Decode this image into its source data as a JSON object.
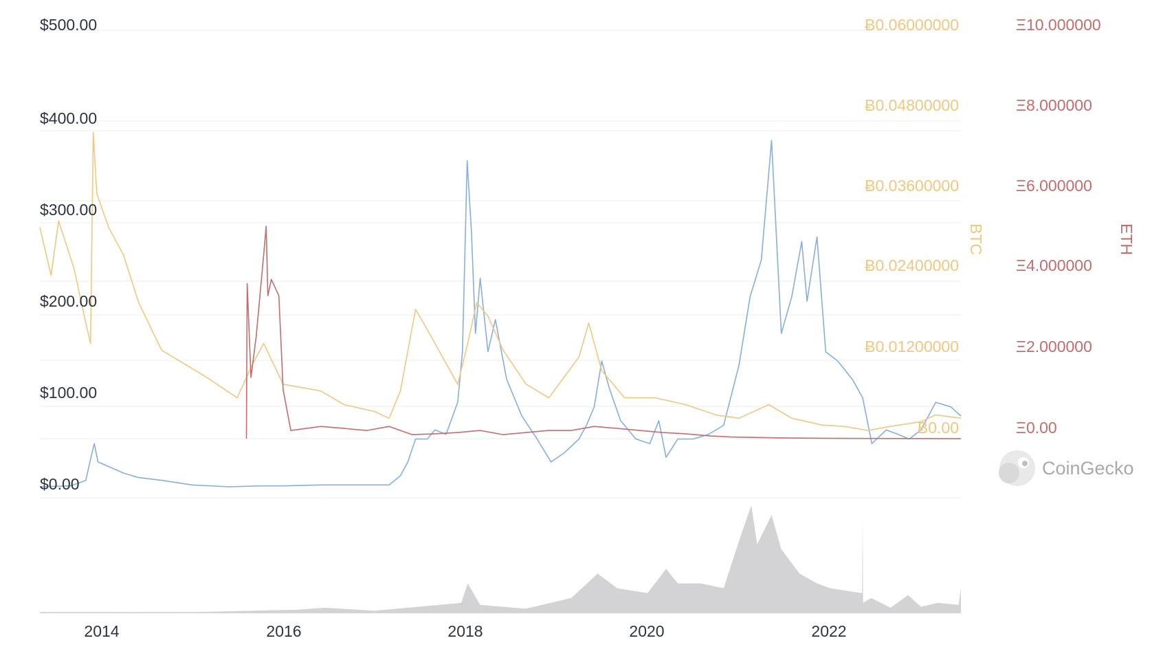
{
  "chart_data": {
    "type": "line",
    "x_axis": {
      "ticks": [
        "2014",
        "2016",
        "2018",
        "2020",
        "2022"
      ],
      "range": [
        "2013-05-01",
        "2023-06-10"
      ]
    },
    "y_axes": {
      "usd": {
        "ticks": [
          "$0.00",
          "$100.00",
          "$200.00",
          "$300.00",
          "$400.00",
          "$500.00"
        ],
        "range": [
          0,
          500
        ]
      },
      "btc": {
        "label": "BTC",
        "ticks": [
          "Ƀ0.00",
          "Ƀ0.01200000",
          "Ƀ0.02400000",
          "Ƀ0.03600000",
          "Ƀ0.04800000",
          "Ƀ0.06000000"
        ],
        "range": [
          0,
          0.06
        ]
      },
      "eth": {
        "label": "ETH",
        "ticks": [
          "Ξ0.00",
          "Ξ2.000000",
          "Ξ4.000000",
          "Ξ6.000000",
          "Ξ8.000000",
          "Ξ10.000000"
        ],
        "range": [
          0,
          10
        ]
      }
    },
    "series": [
      {
        "axis": "usd",
        "color": "#86aee0",
        "points": [
          [
            "2013-05-01",
            3
          ],
          [
            "2013-09-01",
            4
          ],
          [
            "2013-11-01",
            10
          ],
          [
            "2013-11-20",
            33
          ],
          [
            "2013-12-05",
            50
          ],
          [
            "2013-12-20",
            30
          ],
          [
            "2014-02-01",
            25
          ],
          [
            "2014-04-01",
            18
          ],
          [
            "2014-06-01",
            13
          ],
          [
            "2014-09-01",
            10
          ],
          [
            "2015-01-01",
            5
          ],
          [
            "2015-06-01",
            3
          ],
          [
            "2015-10-01",
            4
          ],
          [
            "2016-01-01",
            4
          ],
          [
            "2016-06-01",
            5
          ],
          [
            "2016-12-01",
            5
          ],
          [
            "2017-03-01",
            5
          ],
          [
            "2017-04-15",
            15
          ],
          [
            "2017-05-15",
            30
          ],
          [
            "2017-06-15",
            55
          ],
          [
            "2017-08-01",
            55
          ],
          [
            "2017-09-01",
            65
          ],
          [
            "2017-10-15",
            60
          ],
          [
            "2017-12-01",
            95
          ],
          [
            "2017-12-20",
            150
          ],
          [
            "2018-01-08",
            358
          ],
          [
            "2018-01-25",
            280
          ],
          [
            "2018-02-10",
            170
          ],
          [
            "2018-03-01",
            230
          ],
          [
            "2018-04-01",
            150
          ],
          [
            "2018-05-01",
            185
          ],
          [
            "2018-06-15",
            120
          ],
          [
            "2018-08-15",
            80
          ],
          [
            "2018-10-15",
            55
          ],
          [
            "2018-12-10",
            30
          ],
          [
            "2019-02-01",
            40
          ],
          [
            "2019-04-01",
            55
          ],
          [
            "2019-05-01",
            70
          ],
          [
            "2019-06-01",
            90
          ],
          [
            "2019-07-01",
            140
          ],
          [
            "2019-08-01",
            110
          ],
          [
            "2019-09-15",
            75
          ],
          [
            "2019-11-15",
            55
          ],
          [
            "2020-01-10",
            50
          ],
          [
            "2020-02-15",
            75
          ],
          [
            "2020-03-15",
            35
          ],
          [
            "2020-05-01",
            55
          ],
          [
            "2020-07-01",
            55
          ],
          [
            "2020-09-01",
            60
          ],
          [
            "2020-11-01",
            70
          ],
          [
            "2021-01-01",
            135
          ],
          [
            "2021-02-15",
            210
          ],
          [
            "2021-04-01",
            250
          ],
          [
            "2021-05-12",
            380
          ],
          [
            "2021-06-20",
            170
          ],
          [
            "2021-08-01",
            210
          ],
          [
            "2021-09-10",
            270
          ],
          [
            "2021-10-01",
            205
          ],
          [
            "2021-11-10",
            275
          ],
          [
            "2021-12-15",
            150
          ],
          [
            "2022-02-01",
            140
          ],
          [
            "2022-04-01",
            120
          ],
          [
            "2022-05-12",
            100
          ],
          [
            "2022-06-18",
            50
          ],
          [
            "2022-08-15",
            65
          ],
          [
            "2022-10-01",
            60
          ],
          [
            "2022-11-15",
            55
          ],
          [
            "2023-01-01",
            65
          ],
          [
            "2023-03-01",
            95
          ],
          [
            "2023-05-01",
            90
          ],
          [
            "2023-06-10",
            80
          ]
        ]
      },
      {
        "axis": "btc",
        "color": "#f2c77e",
        "points": [
          [
            "2013-05-01",
            0.031
          ],
          [
            "2013-06-15",
            0.024
          ],
          [
            "2013-07-15",
            0.032
          ],
          [
            "2013-09-15",
            0.025
          ],
          [
            "2013-11-01",
            0.017
          ],
          [
            "2013-11-20",
            0.014
          ],
          [
            "2013-12-01",
            0.045
          ],
          [
            "2013-12-15",
            0.036
          ],
          [
            "2014-02-01",
            0.031
          ],
          [
            "2014-04-01",
            0.027
          ],
          [
            "2014-06-01",
            0.02
          ],
          [
            "2014-09-01",
            0.013
          ],
          [
            "2014-12-01",
            0.011
          ],
          [
            "2015-03-01",
            0.009
          ],
          [
            "2015-07-01",
            0.006
          ],
          [
            "2015-09-01",
            0.011
          ],
          [
            "2015-10-15",
            0.014
          ],
          [
            "2016-01-01",
            0.008
          ],
          [
            "2016-06-01",
            0.007
          ],
          [
            "2016-09-01",
            0.005
          ],
          [
            "2017-01-01",
            0.004
          ],
          [
            "2017-03-01",
            0.003
          ],
          [
            "2017-04-15",
            0.007
          ],
          [
            "2017-06-15",
            0.019
          ],
          [
            "2017-08-01",
            0.016
          ],
          [
            "2017-10-01",
            0.012
          ],
          [
            "2017-12-01",
            0.008
          ],
          [
            "2018-01-10",
            0.014
          ],
          [
            "2018-02-15",
            0.02
          ],
          [
            "2018-04-01",
            0.018
          ],
          [
            "2018-06-01",
            0.013
          ],
          [
            "2018-09-01",
            0.008
          ],
          [
            "2018-12-01",
            0.006
          ],
          [
            "2019-04-01",
            0.012
          ],
          [
            "2019-05-10",
            0.017
          ],
          [
            "2019-07-01",
            0.01
          ],
          [
            "2019-10-01",
            0.006
          ],
          [
            "2020-02-01",
            0.006
          ],
          [
            "2020-06-01",
            0.005
          ],
          [
            "2020-10-01",
            0.0035
          ],
          [
            "2021-01-01",
            0.003
          ],
          [
            "2021-05-01",
            0.005
          ],
          [
            "2021-08-01",
            0.003
          ],
          [
            "2021-12-01",
            0.002
          ],
          [
            "2022-03-01",
            0.0018
          ],
          [
            "2022-06-01",
            0.0012
          ],
          [
            "2022-09-01",
            0.0018
          ],
          [
            "2023-01-01",
            0.0025
          ],
          [
            "2023-03-01",
            0.0035
          ],
          [
            "2023-06-10",
            0.003
          ]
        ]
      },
      {
        "axis": "eth",
        "color": "#c76b6b",
        "points": [
          [
            "2015-08-07",
            0.0
          ],
          [
            "2015-08-10",
            3.8
          ],
          [
            "2015-08-25",
            1.5
          ],
          [
            "2015-09-15",
            2.5
          ],
          [
            "2015-10-15",
            4.5
          ],
          [
            "2015-10-25",
            5.2
          ],
          [
            "2015-11-01",
            3.5
          ],
          [
            "2015-11-15",
            3.9
          ],
          [
            "2015-12-15",
            3.5
          ],
          [
            "2016-01-01",
            1.2
          ],
          [
            "2016-02-01",
            0.2
          ],
          [
            "2016-06-01",
            0.3
          ],
          [
            "2016-09-01",
            0.25
          ],
          [
            "2016-12-01",
            0.2
          ],
          [
            "2017-03-01",
            0.3
          ],
          [
            "2017-06-01",
            0.1
          ],
          [
            "2017-09-01",
            0.12
          ],
          [
            "2017-12-01",
            0.15
          ],
          [
            "2018-03-01",
            0.2
          ],
          [
            "2018-06-01",
            0.1
          ],
          [
            "2018-09-01",
            0.15
          ],
          [
            "2018-12-01",
            0.2
          ],
          [
            "2019-03-01",
            0.2
          ],
          [
            "2019-06-01",
            0.3
          ],
          [
            "2019-09-01",
            0.25
          ],
          [
            "2019-12-01",
            0.2
          ],
          [
            "2020-03-01",
            0.15
          ],
          [
            "2020-06-01",
            0.12
          ],
          [
            "2020-09-01",
            0.07
          ],
          [
            "2020-12-01",
            0.04
          ],
          [
            "2021-06-01",
            0.02
          ],
          [
            "2021-12-01",
            0.01
          ],
          [
            "2022-06-01",
            0.005
          ],
          [
            "2022-12-01",
            0.003
          ],
          [
            "2023-06-10",
            0.002
          ]
        ]
      }
    ],
    "volume": {
      "color": "#d3d3d6",
      "points": [
        [
          "2013-05-01",
          0.2
        ],
        [
          "2015-01-01",
          0.5
        ],
        [
          "2016-03-01",
          3
        ],
        [
          "2016-06-15",
          5
        ],
        [
          "2017-01-01",
          2
        ],
        [
          "2017-05-15",
          5
        ],
        [
          "2017-12-15",
          10
        ],
        [
          "2018-01-10",
          30
        ],
        [
          "2018-03-01",
          8
        ],
        [
          "2018-09-01",
          4
        ],
        [
          "2019-03-01",
          15
        ],
        [
          "2019-06-15",
          40
        ],
        [
          "2019-09-01",
          25
        ],
        [
          "2020-01-01",
          20
        ],
        [
          "2020-02-15",
          35
        ],
        [
          "2020-03-15",
          45
        ],
        [
          "2020-05-01",
          30
        ],
        [
          "2020-08-01",
          30
        ],
        [
          "2020-11-01",
          25
        ],
        [
          "2021-01-10",
          80
        ],
        [
          "2021-02-20",
          110
        ],
        [
          "2021-03-15",
          70
        ],
        [
          "2021-05-12",
          100
        ],
        [
          "2021-06-20",
          65
        ],
        [
          "2021-09-01",
          40
        ],
        [
          "2021-11-10",
          30
        ],
        [
          "2022-01-01",
          25
        ],
        [
          "2022-05-10",
          20
        ],
        [
          "2022-05-12",
          100
        ],
        [
          "2022-05-14",
          10
        ],
        [
          "2022-06-15",
          15
        ],
        [
          "2022-09-01",
          5
        ],
        [
          "2022-11-10",
          18
        ],
        [
          "2023-01-01",
          6
        ],
        [
          "2023-03-10",
          10
        ],
        [
          "2023-06-01",
          8
        ],
        [
          "2023-06-10",
          25
        ]
      ]
    }
  },
  "watermark": {
    "text": "CoinGecko"
  }
}
